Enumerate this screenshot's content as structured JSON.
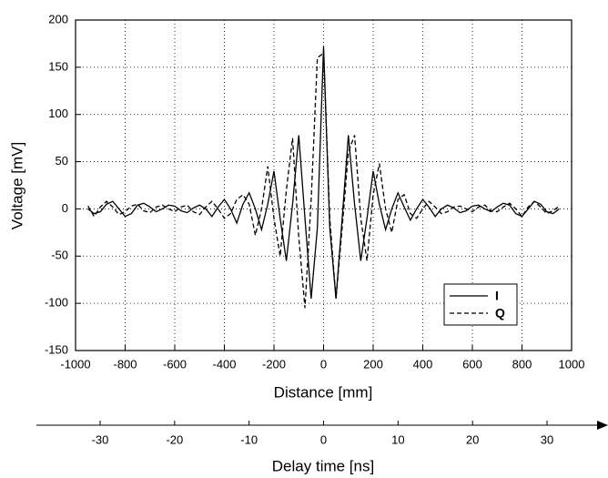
{
  "chart_data": {
    "type": "line",
    "xlabel": "Distance  [mm]",
    "ylabel": "Voltage  [mV]",
    "xlim": [
      -1000,
      1000
    ],
    "xticks": [
      -1000,
      -800,
      -600,
      -400,
      -200,
      0,
      200,
      400,
      600,
      800,
      1000
    ],
    "ylim": [
      -150,
      200
    ],
    "yticks": [
      -150,
      -100,
      -50,
      0,
      50,
      100,
      150,
      200
    ],
    "x2label": "Delay time [ns]",
    "x2lim": [
      -33.3,
      33.3
    ],
    "x2ticks": [
      -30,
      -20,
      -10,
      0,
      10,
      20,
      30
    ],
    "grid": true,
    "legend": "lower right",
    "x": [
      -950,
      -925,
      -900,
      -875,
      -850,
      -825,
      -800,
      -775,
      -750,
      -725,
      -700,
      -675,
      -650,
      -625,
      -600,
      -575,
      -550,
      -525,
      -500,
      -475,
      -450,
      -425,
      -400,
      -375,
      -350,
      -325,
      -300,
      -275,
      -250,
      -225,
      -200,
      -175,
      -150,
      -125,
      -100,
      -75,
      -50,
      -25,
      0,
      25,
      50,
      75,
      100,
      125,
      150,
      175,
      200,
      225,
      250,
      275,
      300,
      325,
      350,
      375,
      400,
      425,
      450,
      475,
      500,
      525,
      550,
      575,
      600,
      625,
      650,
      675,
      700,
      725,
      750,
      775,
      800,
      825,
      850,
      875,
      900,
      925,
      950
    ],
    "series": [
      {
        "name": "I",
        "color": "#000000",
        "linestyle": "solid",
        "values": [
          0,
          -5,
          -3,
          5,
          8,
          0,
          -8,
          -5,
          4,
          6,
          2,
          -3,
          0,
          4,
          3,
          -2,
          -4,
          1,
          4,
          0,
          -8,
          2,
          10,
          0,
          -15,
          5,
          17,
          0,
          -22,
          5,
          40,
          -10,
          -55,
          5,
          78,
          -10,
          -95,
          -20,
          172,
          -20,
          -95,
          -10,
          78,
          5,
          -55,
          -10,
          40,
          5,
          -22,
          0,
          17,
          2,
          -12,
          0,
          10,
          2,
          -8,
          0,
          4,
          1,
          -4,
          -2,
          3,
          4,
          0,
          -3,
          2,
          6,
          4,
          -5,
          -8,
          0,
          8,
          5,
          -3,
          -5,
          0
        ]
      },
      {
        "name": "Q",
        "color": "#000000",
        "linestyle": "dashed",
        "values": [
          3,
          -8,
          2,
          8,
          2,
          -6,
          -3,
          3,
          5,
          -2,
          -4,
          2,
          4,
          0,
          -3,
          2,
          4,
          -3,
          -6,
          2,
          8,
          0,
          -10,
          -5,
          10,
          15,
          5,
          -28,
          0,
          45,
          -10,
          -50,
          20,
          75,
          -30,
          -105,
          10,
          160,
          165,
          -10,
          -95,
          -20,
          60,
          78,
          -10,
          -55,
          15,
          48,
          0,
          -25,
          10,
          15,
          -5,
          -10,
          0,
          8,
          2,
          -5,
          -3,
          2,
          3,
          0,
          -3,
          2,
          4,
          -2,
          -3,
          2,
          6,
          0,
          -8,
          2,
          8,
          2,
          -5,
          -2,
          3
        ]
      }
    ]
  }
}
